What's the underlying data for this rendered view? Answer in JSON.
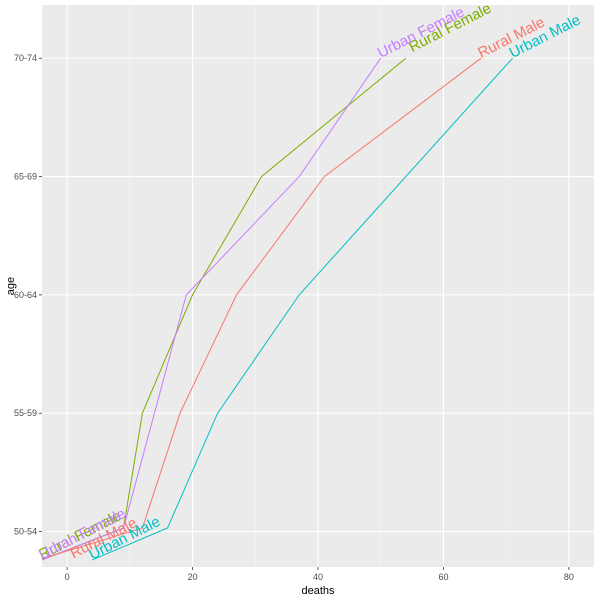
{
  "chart_data": {
    "type": "line",
    "xlabel": "deaths",
    "ylabel": "age",
    "xlim": [
      -4,
      84
    ],
    "ylim": [
      0.7,
      5.45
    ],
    "x_ticks": [
      0,
      20,
      40,
      60,
      80
    ],
    "x_tick_labels": [
      "0",
      "20",
      "40",
      "60",
      "80"
    ],
    "y_categories": [
      "50-54",
      "55-59",
      "60-64",
      "65-69",
      "70-74"
    ],
    "grid": true,
    "legend": "none",
    "series": [
      {
        "name": "Rural Female",
        "color": "#7CAE00",
        "points": [
          {
            "x": -4,
            "y": 0.76
          },
          {
            "x": 9,
            "y": 1.03
          },
          {
            "x": 12,
            "y": 2.0
          },
          {
            "x": 20,
            "y": 3.0
          },
          {
            "x": 31,
            "y": 4.0
          },
          {
            "x": 54,
            "y": 5.0
          }
        ],
        "label_at": {
          "x": 55,
          "y": 5.05
        }
      },
      {
        "name": "Urban Female",
        "color": "#C77CFF",
        "points": [
          {
            "x": -4,
            "y": 0.76
          },
          {
            "x": 9,
            "y": 1.03
          },
          {
            "x": 19,
            "y": 3.0
          },
          {
            "x": 37,
            "y": 4.0
          },
          {
            "x": 50,
            "y": 5.0
          }
        ],
        "label_at": {
          "x": 50,
          "y": 5.0
        }
      },
      {
        "name": "Rural Male",
        "color": "#F8766D",
        "points": [
          {
            "x": -4,
            "y": 0.77
          },
          {
            "x": 12,
            "y": 1.03
          },
          {
            "x": 18,
            "y": 2.0
          },
          {
            "x": 27,
            "y": 3.0
          },
          {
            "x": 41,
            "y": 4.0
          },
          {
            "x": 66,
            "y": 5.0
          }
        ],
        "label_at": {
          "x": 66,
          "y": 5.0
        }
      },
      {
        "name": "Urban Male",
        "color": "#00BFC4",
        "points": [
          {
            "x": 4,
            "y": 0.76
          },
          {
            "x": 16,
            "y": 1.03
          },
          {
            "x": 24,
            "y": 2.0
          },
          {
            "x": 37,
            "y": 3.0
          },
          {
            "x": 71,
            "y": 5.0
          }
        ],
        "label_at": {
          "x": 71,
          "y": 5.0
        }
      }
    ],
    "start_labels": [
      {
        "name": "Rural Female",
        "color": "#7CAE00",
        "x": -4,
        "y": 0.76
      },
      {
        "name": "Urban Female",
        "color": "#C77CFF",
        "x": -4,
        "y": 0.76
      },
      {
        "name": "Rural Male",
        "color": "#F8766D",
        "x": 1,
        "y": 0.77
      },
      {
        "name": "Urban Male",
        "color": "#00BFC4",
        "x": 4,
        "y": 0.76
      }
    ]
  }
}
